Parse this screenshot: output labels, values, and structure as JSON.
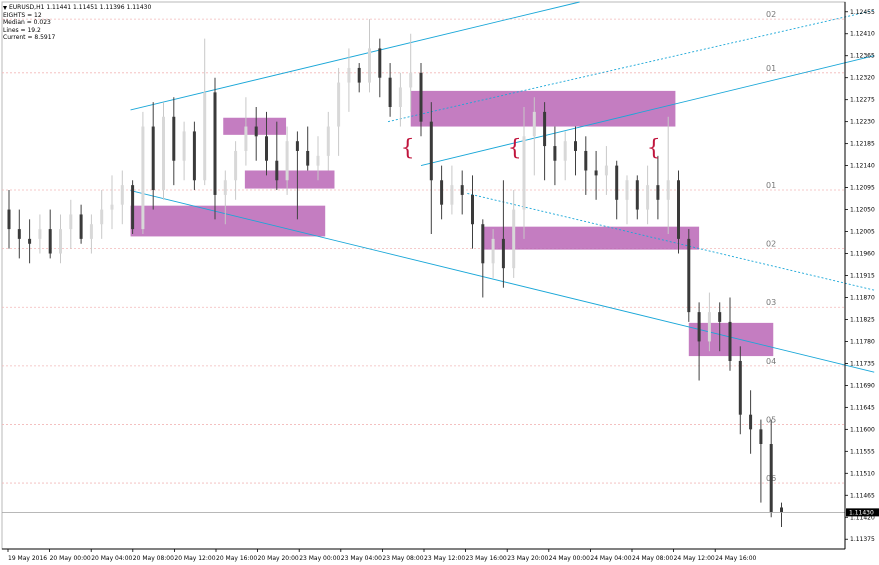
{
  "info": {
    "title": "EURUSD,H1  1.11441 1.11451 1.11396 1.11430",
    "lines": [
      "EIGHTS = 12",
      "Median = 0.023",
      "Lines = 19.2",
      "Current = 8.5917"
    ]
  },
  "chart_data": {
    "type": "candlestick",
    "symbol": "EURUSD",
    "timeframe": "H1",
    "ohlc_current": {
      "open": 1.11441,
      "high": 1.11451,
      "low": 1.11396,
      "close": 1.1143
    },
    "ylim": [
      1.11355,
      1.12475
    ],
    "y_ticks": [
      "1.12455",
      "1.12410",
      "1.12365",
      "1.12320",
      "1.12275",
      "1.12230",
      "1.12185",
      "1.12140",
      "1.12095",
      "1.12050",
      "1.12005",
      "1.11960",
      "1.11915",
      "1.11870",
      "1.11825",
      "1.11780",
      "1.11735",
      "1.11690",
      "1.11645",
      "1.11600",
      "1.11555",
      "1.11510",
      "1.11465",
      "1.11420",
      "1.11375"
    ],
    "x_ticks": [
      "19 May 2016",
      "20 May 00:00",
      "20 May 04:00",
      "20 May 08:00",
      "20 May 12:00",
      "20 May 16:00",
      "20 May 20:00",
      "23 May 00:00",
      "23 May 04:00",
      "23 May 08:00",
      "23 May 12:00",
      "23 May 16:00",
      "23 May 20:00",
      "24 May 00:00",
      "24 May 04:00",
      "24 May 08:00",
      "24 May 12:00",
      "24 May 16:00"
    ],
    "current_price": "1.11430",
    "levels": [
      {
        "label": "02",
        "price": 1.1244
      },
      {
        "label": "01",
        "price": 1.1233
      },
      {
        "label": "01",
        "price": 1.1209
      },
      {
        "label": "02",
        "price": 1.1197
      },
      {
        "label": "03",
        "price": 1.1185
      },
      {
        "label": "04",
        "price": 1.1173
      },
      {
        "label": "05",
        "price": 1.1161
      },
      {
        "label": "06",
        "price": 1.1149
      }
    ],
    "candles": [
      {
        "o": 1.1205,
        "h": 1.1209,
        "l": 1.1197,
        "c": 1.1201
      },
      {
        "o": 1.1201,
        "h": 1.1205,
        "l": 1.1195,
        "c": 1.1199
      },
      {
        "o": 1.1199,
        "h": 1.1203,
        "l": 1.1194,
        "c": 1.1198
      },
      {
        "o": 1.1199,
        "h": 1.1204,
        "l": 1.1196,
        "c": 1.1201
      },
      {
        "o": 1.1201,
        "h": 1.1205,
        "l": 1.1195,
        "c": 1.1196
      },
      {
        "o": 1.1196,
        "h": 1.1204,
        "l": 1.1194,
        "c": 1.1201
      },
      {
        "o": 1.1201,
        "h": 1.1207,
        "l": 1.1197,
        "c": 1.1204
      },
      {
        "o": 1.1204,
        "h": 1.1206,
        "l": 1.1198,
        "c": 1.1199
      },
      {
        "o": 1.1199,
        "h": 1.1204,
        "l": 1.1196,
        "c": 1.1202
      },
      {
        "o": 1.1202,
        "h": 1.1209,
        "l": 1.1199,
        "c": 1.1205
      },
      {
        "o": 1.1205,
        "h": 1.1212,
        "l": 1.1201,
        "c": 1.1206
      },
      {
        "o": 1.1206,
        "h": 1.1213,
        "l": 1.1202,
        "c": 1.121
      },
      {
        "o": 1.121,
        "h": 1.1211,
        "l": 1.12,
        "c": 1.1201
      },
      {
        "o": 1.1201,
        "h": 1.1225,
        "l": 1.12,
        "c": 1.1222
      },
      {
        "o": 1.1222,
        "h": 1.1227,
        "l": 1.1205,
        "c": 1.1209
      },
      {
        "o": 1.1209,
        "h": 1.1227,
        "l": 1.1207,
        "c": 1.1224
      },
      {
        "o": 1.1224,
        "h": 1.1228,
        "l": 1.121,
        "c": 1.1215
      },
      {
        "o": 1.1215,
        "h": 1.1223,
        "l": 1.1211,
        "c": 1.1221
      },
      {
        "o": 1.1221,
        "h": 1.1223,
        "l": 1.1209,
        "c": 1.1211
      },
      {
        "o": 1.1211,
        "h": 1.124,
        "l": 1.121,
        "c": 1.1229
      },
      {
        "o": 1.1229,
        "h": 1.1232,
        "l": 1.1203,
        "c": 1.1208
      },
      {
        "o": 1.1208,
        "h": 1.1213,
        "l": 1.1202,
        "c": 1.1211
      },
      {
        "o": 1.1211,
        "h": 1.1219,
        "l": 1.1207,
        "c": 1.1217
      },
      {
        "o": 1.1217,
        "h": 1.1228,
        "l": 1.1214,
        "c": 1.1222
      },
      {
        "o": 1.1222,
        "h": 1.1226,
        "l": 1.1215,
        "c": 1.122
      },
      {
        "o": 1.122,
        "h": 1.1225,
        "l": 1.1212,
        "c": 1.1215
      },
      {
        "o": 1.1215,
        "h": 1.1223,
        "l": 1.1209,
        "c": 1.1211
      },
      {
        "o": 1.1211,
        "h": 1.1222,
        "l": 1.1208,
        "c": 1.1219
      },
      {
        "o": 1.1219,
        "h": 1.1221,
        "l": 1.1203,
        "c": 1.1217
      },
      {
        "o": 1.1217,
        "h": 1.1222,
        "l": 1.1213,
        "c": 1.1214
      },
      {
        "o": 1.1214,
        "h": 1.122,
        "l": 1.1211,
        "c": 1.1216
      },
      {
        "o": 1.1216,
        "h": 1.1225,
        "l": 1.1213,
        "c": 1.1222
      },
      {
        "o": 1.1222,
        "h": 1.1234,
        "l": 1.1216,
        "c": 1.1231
      },
      {
        "o": 1.1231,
        "h": 1.1238,
        "l": 1.1225,
        "c": 1.1234
      },
      {
        "o": 1.1234,
        "h": 1.1235,
        "l": 1.1229,
        "c": 1.1231
      },
      {
        "o": 1.1231,
        "h": 1.1244,
        "l": 1.1229,
        "c": 1.1238
      },
      {
        "o": 1.1238,
        "h": 1.124,
        "l": 1.1228,
        "c": 1.1232
      },
      {
        "o": 1.1232,
        "h": 1.1235,
        "l": 1.1224,
        "c": 1.1226
      },
      {
        "o": 1.1226,
        "h": 1.1233,
        "l": 1.1222,
        "c": 1.123
      },
      {
        "o": 1.123,
        "h": 1.1241,
        "l": 1.1225,
        "c": 1.1233
      },
      {
        "o": 1.1233,
        "h": 1.1235,
        "l": 1.122,
        "c": 1.1223
      },
      {
        "o": 1.1223,
        "h": 1.1227,
        "l": 1.12,
        "c": 1.1211
      },
      {
        "o": 1.1211,
        "h": 1.1214,
        "l": 1.1203,
        "c": 1.1206
      },
      {
        "o": 1.1206,
        "h": 1.1214,
        "l": 1.1204,
        "c": 1.121
      },
      {
        "o": 1.121,
        "h": 1.1213,
        "l": 1.1204,
        "c": 1.1208
      },
      {
        "o": 1.1208,
        "h": 1.1212,
        "l": 1.1197,
        "c": 1.1202
      },
      {
        "o": 1.1202,
        "h": 1.1203,
        "l": 1.1187,
        "c": 1.1194
      },
      {
        "o": 1.1194,
        "h": 1.1201,
        "l": 1.1191,
        "c": 1.1199
      },
      {
        "o": 1.1199,
        "h": 1.1211,
        "l": 1.1189,
        "c": 1.1193
      },
      {
        "o": 1.1193,
        "h": 1.1209,
        "l": 1.1191,
        "c": 1.1205
      },
      {
        "o": 1.1205,
        "h": 1.1226,
        "l": 1.1199,
        "c": 1.122
      },
      {
        "o": 1.122,
        "h": 1.1228,
        "l": 1.1212,
        "c": 1.1225
      },
      {
        "o": 1.1225,
        "h": 1.1227,
        "l": 1.1211,
        "c": 1.1218
      },
      {
        "o": 1.1218,
        "h": 1.1222,
        "l": 1.121,
        "c": 1.1215
      },
      {
        "o": 1.1215,
        "h": 1.1221,
        "l": 1.1211,
        "c": 1.1219
      },
      {
        "o": 1.1219,
        "h": 1.1222,
        "l": 1.1212,
        "c": 1.1217
      },
      {
        "o": 1.1217,
        "h": 1.122,
        "l": 1.1208,
        "c": 1.1213
      },
      {
        "o": 1.1213,
        "h": 1.1217,
        "l": 1.1207,
        "c": 1.1212
      },
      {
        "o": 1.1212,
        "h": 1.1218,
        "l": 1.1208,
        "c": 1.1214
      },
      {
        "o": 1.1214,
        "h": 1.1215,
        "l": 1.1203,
        "c": 1.1207
      },
      {
        "o": 1.1207,
        "h": 1.1212,
        "l": 1.1202,
        "c": 1.1211
      },
      {
        "o": 1.1211,
        "h": 1.1212,
        "l": 1.1203,
        "c": 1.1205
      },
      {
        "o": 1.1205,
        "h": 1.1214,
        "l": 1.1202,
        "c": 1.121
      },
      {
        "o": 1.121,
        "h": 1.1216,
        "l": 1.1203,
        "c": 1.1207
      },
      {
        "o": 1.1207,
        "h": 1.1224,
        "l": 1.12,
        "c": 1.1211
      },
      {
        "o": 1.1211,
        "h": 1.1213,
        "l": 1.1196,
        "c": 1.1199
      },
      {
        "o": 1.1199,
        "h": 1.1201,
        "l": 1.1182,
        "c": 1.1184
      },
      {
        "o": 1.1184,
        "h": 1.1186,
        "l": 1.117,
        "c": 1.1178
      },
      {
        "o": 1.1178,
        "h": 1.1188,
        "l": 1.1176,
        "c": 1.1184
      },
      {
        "o": 1.1184,
        "h": 1.1186,
        "l": 1.1176,
        "c": 1.1182
      },
      {
        "o": 1.1182,
        "h": 1.1187,
        "l": 1.1172,
        "c": 1.1174
      },
      {
        "o": 1.1174,
        "h": 1.1177,
        "l": 1.1159,
        "c": 1.1163
      },
      {
        "o": 1.1163,
        "h": 1.1168,
        "l": 1.1155,
        "c": 1.116
      },
      {
        "o": 1.116,
        "h": 1.1162,
        "l": 1.1145,
        "c": 1.1157
      },
      {
        "o": 1.1157,
        "h": 1.1162,
        "l": 1.1142,
        "c": 1.1143
      },
      {
        "o": 1.1144,
        "h": 1.1145,
        "l": 1.114,
        "c": 1.1143
      }
    ],
    "zones": [
      {
        "i0": 11.8,
        "i1": 30.7,
        "p1": 1.12058,
        "p2": 1.11995
      },
      {
        "i0": 20.8,
        "i1": 26.9,
        "p1": 1.12238,
        "p2": 1.12203
      },
      {
        "i0": 22.9,
        "i1": 31.6,
        "p1": 1.1213,
        "p2": 1.12093
      },
      {
        "i0": 39.0,
        "i1": 64.7,
        "p1": 1.12293,
        "p2": 1.1222
      },
      {
        "i0": 46.0,
        "i1": 67.0,
        "p1": 1.12015,
        "p2": 1.11968
      },
      {
        "i0": 66.0,
        "i1": 74.2,
        "p1": 1.11818,
        "p2": 1.1175
      }
    ],
    "trendlines": [
      {
        "i0": 11.8,
        "p0": 1.12254,
        "i1": 55.4,
        "p1": 1.12475,
        "style": "solid"
      },
      {
        "i0": 40.0,
        "p0": 1.1214,
        "i1": 84.0,
        "p1": 1.12365,
        "style": "solid"
      },
      {
        "i0": 36.8,
        "p0": 1.1223,
        "i1": 84.0,
        "p1": 1.12458,
        "style": "dotted"
      },
      {
        "i0": 11.8,
        "p0": 1.12089,
        "i1": 84.0,
        "p1": 1.11717,
        "style": "solid"
      },
      {
        "i0": 44.5,
        "p0": 1.12083,
        "i1": 84.0,
        "p1": 1.11885,
        "style": "dotted"
      }
    ],
    "braces": [
      {
        "i": 38.6,
        "price": 1.12178
      },
      {
        "i": 49.0,
        "price": 1.12178
      },
      {
        "i": 62.5,
        "price": 1.12178
      }
    ]
  }
}
